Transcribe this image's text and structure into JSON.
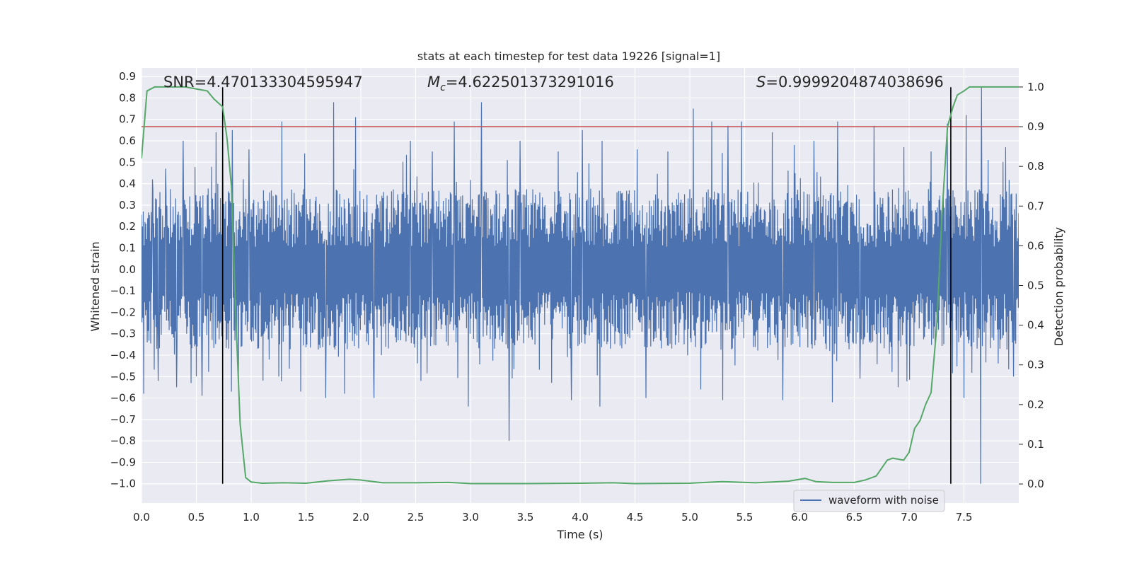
{
  "chart_data": {
    "type": "line",
    "title": "stats at each timestep for test data 19226 [signal=1]",
    "xlabel": "Time (s)",
    "ylabel": "Whitened strain",
    "y2label": "Detection probability",
    "xlim": [
      0,
      8
    ],
    "ylim": [
      -1.09,
      0.94
    ],
    "y2lim": [
      -0.048,
      1.048
    ],
    "xticks": [
      "0.0",
      "0.5",
      "1.0",
      "1.5",
      "2.0",
      "2.5",
      "3.0",
      "3.5",
      "4.0",
      "4.5",
      "5.0",
      "5.5",
      "6.0",
      "6.5",
      "7.0",
      "7.5"
    ],
    "yticks": [
      "0.9",
      "0.8",
      "0.7",
      "0.6",
      "0.5",
      "0.4",
      "0.3",
      "0.2",
      "0.1",
      "0.0",
      "−0.1",
      "−0.2",
      "−0.3",
      "−0.4",
      "−0.5",
      "−0.6",
      "−0.7",
      "−0.8",
      "−0.9",
      "−1.0"
    ],
    "y2ticks": [
      "1.0",
      "0.9",
      "0.8",
      "0.7",
      "0.6",
      "0.5",
      "0.4",
      "0.3",
      "0.2",
      "0.1",
      "0.0"
    ],
    "annotations": {
      "snr": "SNR=4.470133304595947",
      "mc_symbol": "M",
      "mc_sub": "c",
      "mc_value": "=4.622501373291016",
      "s_symbol": "S",
      "s_value": "=0.9999204874038696"
    },
    "threshold": {
      "value": 0.9,
      "axis": "right",
      "color": "#c44e52"
    },
    "markers": {
      "times": [
        0.74,
        7.38
      ],
      "y_range": [
        -1.0,
        0.85
      ],
      "color": "#000000"
    },
    "legend": {
      "label": "waveform with noise",
      "placement": "lower-right"
    },
    "series": [
      {
        "name": "waveform with noise",
        "axis": "left",
        "color": "#4c72b0",
        "kind": "noise",
        "description_values": {
          "t_start": 0.0,
          "t_end": 8.0,
          "typical_high": 0.3,
          "typical_low": -0.3
        },
        "peaks": [
          [
            0.02,
            0.34
          ],
          [
            0.1,
            0.42
          ],
          [
            0.22,
            0.47
          ],
          [
            0.38,
            0.6
          ],
          [
            0.55,
            0.58
          ],
          [
            0.68,
            0.64
          ],
          [
            0.74,
            0.66
          ],
          [
            0.83,
            0.65
          ],
          [
            0.98,
            0.56
          ],
          [
            1.28,
            0.69
          ],
          [
            1.75,
            0.78
          ],
          [
            1.95,
            0.71
          ],
          [
            2.45,
            0.6
          ],
          [
            2.65,
            0.55
          ],
          [
            2.85,
            0.69
          ],
          [
            3.1,
            0.78
          ],
          [
            3.45,
            0.6
          ],
          [
            3.8,
            0.55
          ],
          [
            4.02,
            0.65
          ],
          [
            4.2,
            0.6
          ],
          [
            4.52,
            0.56
          ],
          [
            4.8,
            0.55
          ],
          [
            5.03,
            0.75
          ],
          [
            5.2,
            0.69
          ],
          [
            5.35,
            0.67
          ],
          [
            5.47,
            0.69
          ],
          [
            5.75,
            0.64
          ],
          [
            5.95,
            0.58
          ],
          [
            6.13,
            0.6
          ],
          [
            6.35,
            0.69
          ],
          [
            6.55,
            0.62
          ],
          [
            6.68,
            0.67
          ],
          [
            6.95,
            0.57
          ],
          [
            7.2,
            0.55
          ],
          [
            7.35,
            0.68
          ],
          [
            7.52,
            0.72
          ],
          [
            7.66,
            0.85
          ],
          [
            7.88,
            0.57
          ]
        ],
        "troughs": [
          [
            0.02,
            -0.58
          ],
          [
            0.15,
            -0.52
          ],
          [
            0.32,
            -0.55
          ],
          [
            0.45,
            -0.53
          ],
          [
            0.55,
            -0.59
          ],
          [
            0.82,
            -0.57
          ],
          [
            1.25,
            -0.5
          ],
          [
            1.45,
            -0.57
          ],
          [
            1.68,
            -0.6
          ],
          [
            1.85,
            -0.58
          ],
          [
            2.12,
            -0.6
          ],
          [
            2.55,
            -0.52
          ],
          [
            2.98,
            -0.64
          ],
          [
            3.35,
            -0.8
          ],
          [
            3.92,
            -0.61
          ],
          [
            4.18,
            -0.64
          ],
          [
            4.6,
            -0.6
          ],
          [
            5.1,
            -0.56
          ],
          [
            5.3,
            -0.61
          ],
          [
            5.85,
            -0.61
          ],
          [
            6.3,
            -0.62
          ],
          [
            6.55,
            -0.51
          ],
          [
            6.9,
            -0.55
          ],
          [
            7.5,
            -0.6
          ],
          [
            7.65,
            -1.0
          ],
          [
            7.95,
            -0.5
          ]
        ]
      },
      {
        "name": "detection probability",
        "axis": "right",
        "color": "#55a868",
        "x": [
          0.0,
          0.05,
          0.12,
          0.25,
          0.4,
          0.6,
          0.66,
          0.74,
          0.78,
          0.82,
          0.86,
          0.9,
          0.95,
          1.0,
          1.1,
          1.3,
          1.5,
          1.7,
          1.9,
          2.0,
          2.2,
          2.5,
          2.8,
          3.0,
          3.5,
          4.0,
          4.3,
          4.5,
          5.0,
          5.3,
          5.6,
          5.9,
          6.05,
          6.15,
          6.3,
          6.5,
          6.6,
          6.7,
          6.8,
          6.85,
          6.95,
          7.0,
          7.05,
          7.1,
          7.15,
          7.2,
          7.25,
          7.3,
          7.35,
          7.4,
          7.44,
          7.5,
          7.55,
          7.65,
          8.0
        ],
        "y": [
          0.82,
          0.99,
          1.0,
          1.0,
          1.0,
          0.99,
          0.97,
          0.95,
          0.87,
          0.75,
          0.42,
          0.15,
          0.016,
          0.005,
          0.002,
          0.003,
          0.002,
          0.008,
          0.012,
          0.01,
          0.003,
          0.003,
          0.004,
          0.001,
          0.001,
          0.002,
          0.003,
          0.001,
          0.002,
          0.006,
          0.003,
          0.007,
          0.014,
          0.006,
          0.004,
          0.004,
          0.01,
          0.02,
          0.06,
          0.065,
          0.06,
          0.08,
          0.14,
          0.16,
          0.2,
          0.23,
          0.39,
          0.68,
          0.9,
          0.95,
          0.98,
          0.99,
          1.0,
          1.0,
          1.0
        ]
      }
    ]
  }
}
